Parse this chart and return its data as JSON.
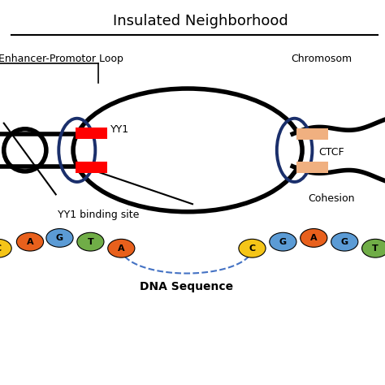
{
  "title": "Insulated Neighborhood",
  "bg_color": "#ffffff",
  "label_enhancer_promotor": "Enhancer-Promotor Loop",
  "label_chromosome": "Chromosom",
  "label_yy1": "YY1",
  "label_ctcf": "CTCF",
  "label_cohesion": "Cohesion",
  "label_yy1_binding": "YY1 binding site",
  "label_dna": "DNA Sequence",
  "dna_left": [
    "C",
    "A",
    "G",
    "T",
    "A"
  ],
  "dna_left_colors": [
    "#f5c518",
    "#e8601c",
    "#5b9bd5",
    "#70ad47",
    "#e8601c"
  ],
  "dna_right": [
    "C",
    "G",
    "A",
    "G",
    "T"
  ],
  "dna_right_colors": [
    "#f5c518",
    "#5b9bd5",
    "#e8601c",
    "#5b9bd5",
    "#70ad47"
  ],
  "lw_main": 4.0,
  "lw_oval": 2.8,
  "title_fontsize": 13,
  "label_fontsize": 9,
  "dna_fontsize": 8
}
